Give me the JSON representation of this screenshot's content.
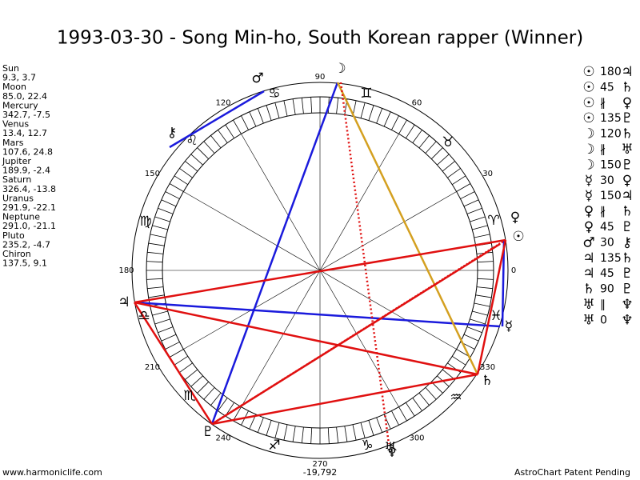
{
  "header": {
    "title": "1993-03-30 - Song Min-ho, South Korean rapper (Winner)"
  },
  "planets": [
    {
      "name": "Sun",
      "position": "9.3, 3.7"
    },
    {
      "name": "Moon",
      "position": "85.0, 22.4"
    },
    {
      "name": "Mercury",
      "position": "342.7, -7.5"
    },
    {
      "name": "Venus",
      "position": "13.4, 12.7"
    },
    {
      "name": "Mars",
      "position": "107.6, 24.8"
    },
    {
      "name": "Jupiter",
      "position": "189.9, -2.4"
    },
    {
      "name": "Saturn",
      "position": "326.4, -13.8"
    },
    {
      "name": "Uranus",
      "position": "291.9, -22.1"
    },
    {
      "name": "Neptune",
      "position": "291.0, -21.1"
    },
    {
      "name": "Pluto",
      "position": "235.2, -4.7"
    },
    {
      "name": "Chiron",
      "position": "137.5, 9.1"
    }
  ],
  "aspects": [
    [
      "☉",
      "180",
      "♃"
    ],
    [
      "☉",
      "45",
      "♄"
    ],
    [
      "☉",
      "∦",
      "♀"
    ],
    [
      "☉",
      "135",
      "♇"
    ],
    [
      "☽",
      "120",
      "♄"
    ],
    [
      "☽",
      "∦",
      "♅"
    ],
    [
      "☽",
      "150",
      "♇"
    ],
    [
      "☿",
      "30",
      "♀"
    ],
    [
      "☿",
      "150",
      "♃"
    ],
    [
      "♀",
      "∦",
      "♄"
    ],
    [
      "♀",
      "45",
      "♇"
    ],
    [
      "♂",
      "30",
      "⚷"
    ],
    [
      "♃",
      "135",
      "♄"
    ],
    [
      "♃",
      "45",
      "♇"
    ],
    [
      "♄",
      "90",
      "♇"
    ],
    [
      "♅",
      "∥",
      "♆"
    ],
    [
      "♅",
      "0",
      "♆"
    ]
  ],
  "wheel": {
    "degrees": [
      0,
      30,
      60,
      90,
      120,
      150,
      180,
      210,
      240,
      270,
      300,
      330
    ],
    "planet_glyphs": [
      "☉",
      "♀",
      "☽",
      "♂",
      "⚷",
      "♃",
      "♇",
      "♆",
      "♅",
      "♄",
      "☿"
    ],
    "signs": [
      "♈",
      "♉",
      "♊",
      "♋",
      "♌",
      "♍",
      "♎",
      "♏",
      "♐",
      "♑",
      "♒",
      "♓"
    ]
  },
  "footer": {
    "left": "www.harmoniclife.com",
    "center": "-19,792",
    "right": "AstroChart Patent Pending"
  }
}
